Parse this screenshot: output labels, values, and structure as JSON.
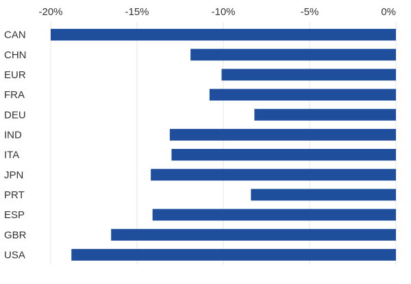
{
  "chart_data": {
    "type": "bar",
    "orientation": "horizontal",
    "categories": [
      "CAN",
      "CHN",
      "EUR",
      "FRA",
      "DEU",
      "IND",
      "ITA",
      "JPN",
      "PRT",
      "ESP",
      "GBR",
      "USA"
    ],
    "values": [
      -20.0,
      -11.9,
      -10.1,
      -10.8,
      -8.2,
      -13.1,
      -13.0,
      -14.2,
      -8.4,
      -14.1,
      -16.5,
      -18.8
    ],
    "xlim": [
      -20,
      0
    ],
    "xticks": [
      -20,
      -15,
      -10,
      -5,
      0
    ],
    "xtick_labels": [
      "-20%",
      "-15%",
      "-10%",
      "-5%",
      "0%"
    ],
    "xaxis_position": "top",
    "grid": true,
    "title": "",
    "xlabel": "",
    "ylabel": "",
    "bar_color": "#1f4e9c",
    "grid_color": "#e6e6e6",
    "text_color": "#333333"
  }
}
